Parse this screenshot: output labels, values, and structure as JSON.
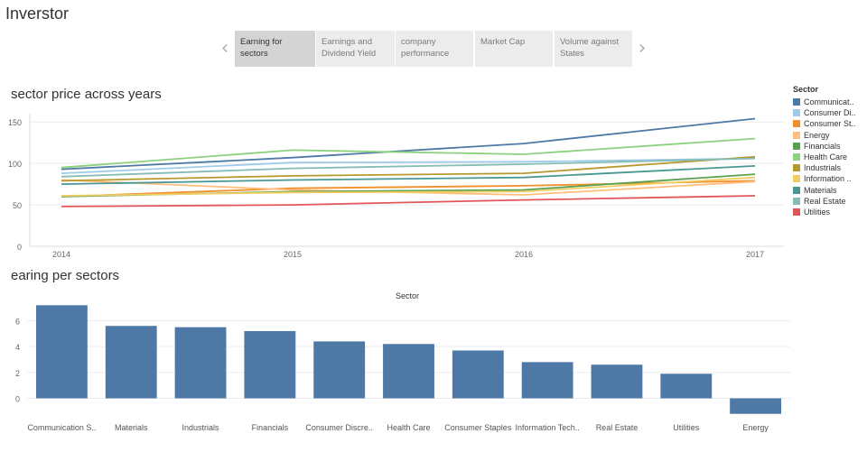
{
  "app": {
    "title": "Inverstor"
  },
  "story_tabs": [
    {
      "label": "Earning for sectors",
      "active": true
    },
    {
      "label": "Earnings and Dividend Yield",
      "active": false
    },
    {
      "label": "company performance",
      "active": false
    },
    {
      "label": "Market Cap",
      "active": false
    },
    {
      "label": "Volume against States",
      "active": false
    }
  ],
  "icons": {
    "prev": "chevron-left-icon",
    "next": "chevron-right-icon"
  },
  "chart_data": [
    {
      "type": "line",
      "title": "sector price across years",
      "xlabel": "",
      "ylabel": "",
      "x": [
        "2014",
        "2015",
        "2016",
        "2017"
      ],
      "yticks": [
        0,
        50,
        100,
        150
      ],
      "ylim": [
        0,
        160
      ],
      "grid": true,
      "legend": {
        "title": "Sector",
        "placement": "right"
      },
      "series": [
        {
          "name": "Communicat..",
          "color": "#4e79a7",
          "values": [
            93,
            107,
            124,
            154
          ]
        },
        {
          "name": "Consumer Di..",
          "color": "#a0cbe8",
          "values": [
            88,
            101,
            102,
            106
          ]
        },
        {
          "name": "Consumer St..",
          "color": "#f28e2b",
          "values": [
            60,
            70,
            73,
            79
          ]
        },
        {
          "name": "Energy",
          "color": "#ffbe7d",
          "values": [
            80,
            68,
            62,
            78
          ]
        },
        {
          "name": "Financials",
          "color": "#59a14f",
          "values": [
            60,
            66,
            68,
            87
          ]
        },
        {
          "name": "Health Care",
          "color": "#8cd17d",
          "values": [
            95,
            116,
            111,
            130
          ]
        },
        {
          "name": "Industrials",
          "color": "#b6992d",
          "values": [
            79,
            85,
            88,
            108
          ]
        },
        {
          "name": "Information ..",
          "color": "#f1ce63",
          "values": [
            61,
            65,
            66,
            83
          ]
        },
        {
          "name": "Materials",
          "color": "#499894",
          "values": [
            75,
            80,
            83,
            97
          ]
        },
        {
          "name": "Real Estate",
          "color": "#86bcb6",
          "values": [
            84,
            94,
            99,
            106
          ]
        },
        {
          "name": "Utilities",
          "color": "#e15759",
          "values": [
            48,
            50,
            56,
            61
          ]
        }
      ]
    },
    {
      "type": "bar",
      "title": "earing per sectors",
      "header": "Sector",
      "categories": [
        "Communication S..",
        "Materials",
        "Industrials",
        "Financials",
        "Consumer Discre..",
        "Health Care",
        "Consumer Staples",
        "Information Tech..",
        "Real Estate",
        "Utilities",
        "Energy"
      ],
      "values": [
        7.2,
        5.6,
        5.5,
        5.2,
        4.4,
        4.2,
        3.7,
        2.8,
        2.6,
        1.9,
        -1.2
      ],
      "yticks": [
        0,
        2,
        4,
        6
      ],
      "ylim": [
        -1.5,
        7.5
      ],
      "color": "#4e79a7",
      "grid": true
    }
  ]
}
